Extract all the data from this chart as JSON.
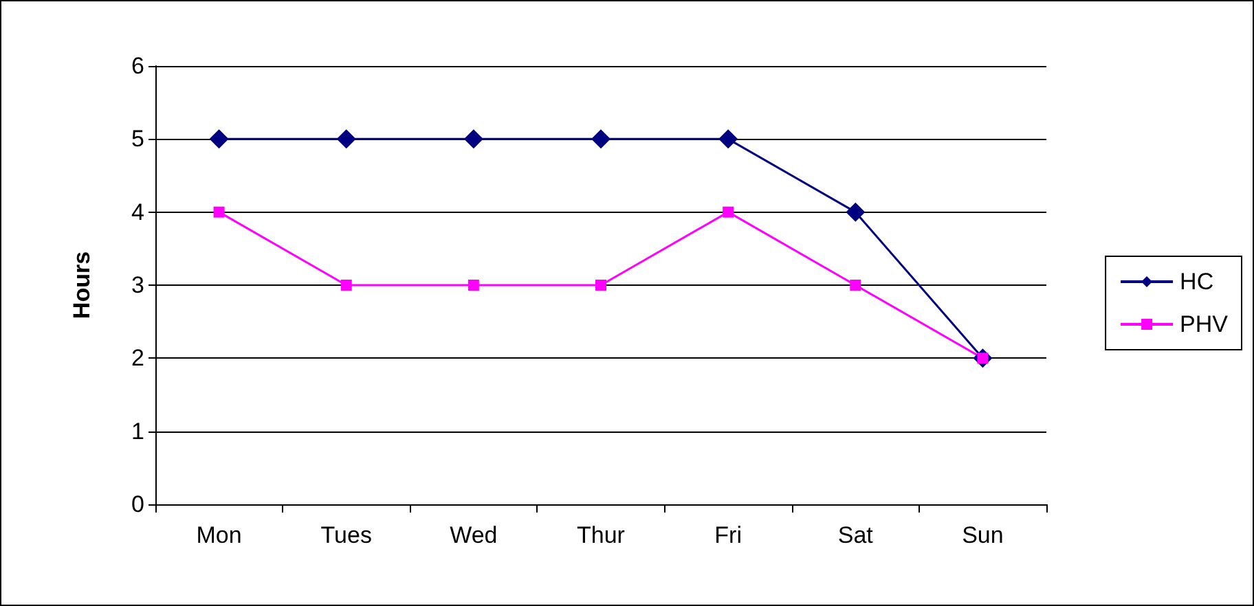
{
  "chart_data": {
    "type": "line",
    "ylabel": "Hours",
    "categories": [
      "Mon",
      "Tues",
      "Wed",
      "Thur",
      "Fri",
      "Sat",
      "Sun"
    ],
    "series": [
      {
        "name": "HC",
        "color": "#000080",
        "values": [
          5,
          5,
          5,
          5,
          5,
          4,
          2
        ],
        "marker": "diamond"
      },
      {
        "name": "PHV",
        "color": "#ff00ff",
        "values": [
          4,
          3,
          3,
          3,
          4,
          3,
          2
        ],
        "marker": "square"
      }
    ],
    "ylim": [
      0,
      6
    ],
    "yticks": [
      0,
      1,
      2,
      3,
      4,
      5,
      6
    ],
    "grid": "y",
    "legend": "right"
  }
}
